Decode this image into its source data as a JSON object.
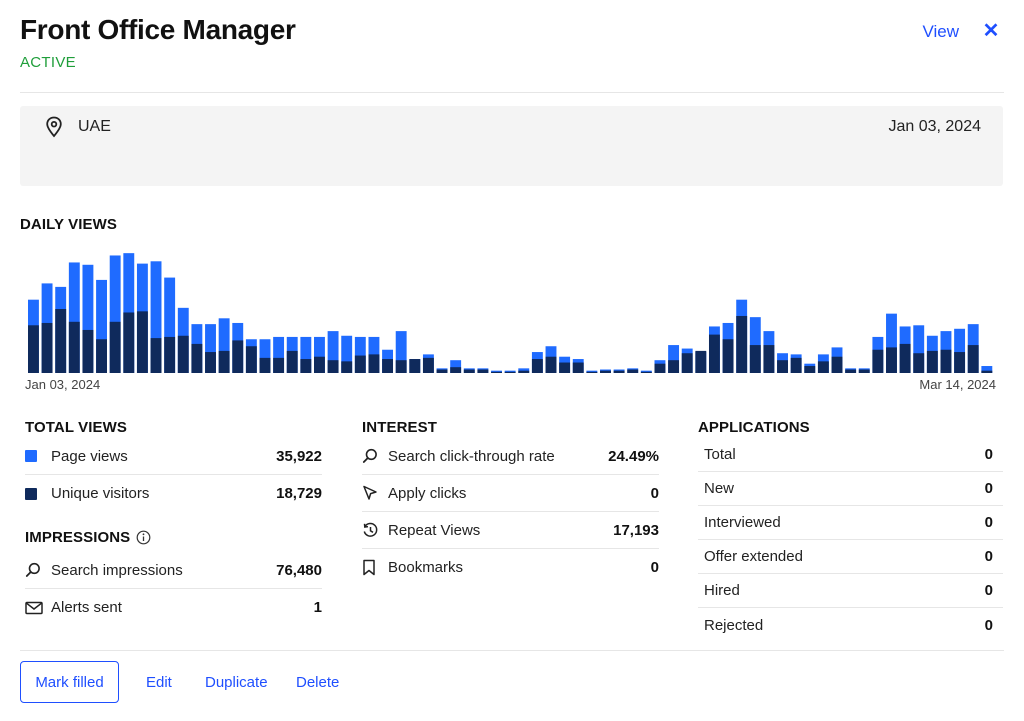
{
  "header": {
    "title": "Front Office Manager",
    "status": "ACTIVE",
    "view_label": "View",
    "close_glyph": "✕"
  },
  "info": {
    "location": "UAE",
    "date": "Jan 03, 2024",
    "location_icon": "map-pin-icon"
  },
  "daily_views": {
    "heading": "DAILY VIEWS",
    "start_label": "Jan 03, 2024",
    "end_label": "Mar 14, 2024"
  },
  "chart_data": {
    "type": "bar",
    "stacked": "overlay",
    "title": "DAILY VIEWS",
    "x_start": "Jan 03, 2024",
    "x_end": "Mar 14, 2024",
    "series": [
      {
        "name": "Page views",
        "color": "#1f6bff",
        "values": [
          63,
          77,
          74,
          95,
          93,
          80,
          101,
          103,
          94,
          96,
          82,
          56,
          42,
          42,
          47,
          43,
          29,
          29,
          31,
          31,
          31,
          31,
          36,
          32,
          31,
          31,
          20,
          36,
          12,
          16,
          4,
          11,
          4,
          4,
          2,
          2,
          4,
          18,
          23,
          14,
          12,
          2,
          3,
          3,
          4,
          2,
          11,
          24,
          21,
          18,
          40,
          43,
          63,
          48,
          36,
          17,
          16,
          8,
          16,
          22,
          4,
          4,
          31,
          51,
          40,
          41,
          32,
          36,
          38,
          42,
          6
        ],
        "dark_values": [
          41,
          43,
          55,
          44,
          37,
          29,
          44,
          52,
          53,
          30,
          31,
          32,
          25,
          18,
          19,
          28,
          23,
          13,
          13,
          19,
          12,
          14,
          11,
          10,
          15,
          16,
          12,
          11,
          12,
          13,
          3,
          5,
          3,
          3,
          1,
          1,
          2,
          12,
          14,
          9,
          9,
          1,
          2,
          2,
          3,
          1,
          8,
          11,
          17,
          19,
          33,
          29,
          49,
          24,
          24,
          11,
          13,
          6,
          10,
          14,
          3,
          3,
          20,
          22,
          25,
          17,
          19,
          20,
          18,
          24,
          2
        ]
      },
      {
        "name": "Unique visitors",
        "color": "#0f2a5c"
      }
    ]
  },
  "total_views": {
    "heading": "TOTAL VIEWS",
    "rows": [
      {
        "label": "Page views",
        "value": "35,922",
        "color": "#1f6bff"
      },
      {
        "label": "Unique visitors",
        "value": "18,729",
        "color": "#0f2a5c"
      }
    ]
  },
  "impressions": {
    "heading": "IMPRESSIONS",
    "info_icon": "info-icon",
    "rows": [
      {
        "label": "Search impressions",
        "value": "76,480",
        "icon": "search-icon"
      },
      {
        "label": "Alerts sent",
        "value": "1",
        "icon": "mail-icon"
      }
    ]
  },
  "interest": {
    "heading": "INTEREST",
    "rows": [
      {
        "label": "Search click-through rate",
        "value": "24.49%",
        "icon": "search-icon"
      },
      {
        "label": "Apply clicks",
        "value": "0",
        "icon": "cursor-icon"
      },
      {
        "label": "Repeat Views",
        "value": "17,193",
        "icon": "history-icon"
      },
      {
        "label": "Bookmarks",
        "value": "0",
        "icon": "bookmark-icon"
      }
    ]
  },
  "applications": {
    "heading": "APPLICATIONS",
    "rows": [
      {
        "label": "Total",
        "value": "0"
      },
      {
        "label": "New",
        "value": "0"
      },
      {
        "label": "Interviewed",
        "value": "0"
      },
      {
        "label": "Offer extended",
        "value": "0"
      },
      {
        "label": "Hired",
        "value": "0"
      },
      {
        "label": "Rejected",
        "value": "0"
      }
    ]
  },
  "actions": {
    "mark_filled": "Mark filled",
    "edit": "Edit",
    "duplicate": "Duplicate",
    "delete": "Delete"
  }
}
